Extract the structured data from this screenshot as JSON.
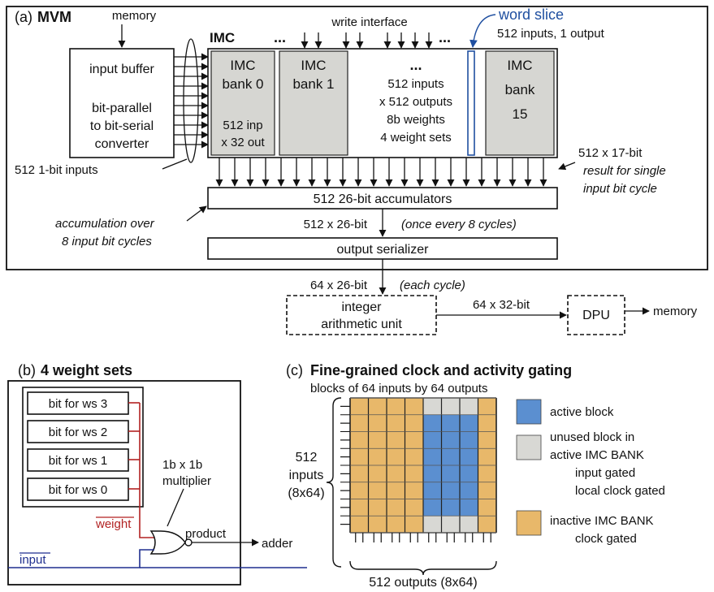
{
  "panel_a": {
    "label": "(a)",
    "title": "MVM",
    "memory_top": "memory",
    "input_buffer": [
      "input buffer",
      "bit-parallel",
      "to bit-serial",
      "converter"
    ],
    "input_bits": "512 1-bit inputs",
    "imc_label": "IMC",
    "write_interface": "write interface",
    "ellipsis": "...",
    "word_slice": "word slice",
    "word_slice_desc": "512 inputs, 1 output",
    "bank0": [
      "IMC",
      "bank 0",
      "512 inp",
      "x 32 out"
    ],
    "bank1": [
      "IMC",
      "bank 1"
    ],
    "bank_middle": [
      "...",
      "512 inputs",
      "x 512 outputs",
      "8b weights",
      "4 weight sets"
    ],
    "bank15": [
      "IMC",
      "bank",
      "15"
    ],
    "result_width": "512 x 17-bit",
    "result_desc": [
      "result for single",
      "input bit cycle"
    ],
    "accumulators": "512 26-bit accumulators",
    "accumulation_note": [
      "accumulation over",
      "8 input bit cycles"
    ],
    "acc_width": "512 x 26-bit",
    "acc_rate": "(once every 8 cycles)",
    "serializer": "output serializer",
    "ser_width": "64 x 26-bit",
    "ser_rate": "(each cycle)",
    "iau": [
      "integer",
      "arithmetic unit"
    ],
    "iau_width": "64 x 32-bit",
    "dpu": "DPU",
    "memory_out": "memory"
  },
  "panel_b": {
    "label": "(b)",
    "title": "4 weight sets",
    "bits": [
      "bit for ws 3",
      "bit for ws 2",
      "bit for ws 1",
      "bit for ws 0"
    ],
    "multiplier": [
      "1b x 1b",
      "multiplier"
    ],
    "weight": "weight",
    "input": "input",
    "product": "product",
    "adder": "adder",
    "colors": {
      "weight": "#b22222",
      "input": "#1f2f8f"
    }
  },
  "panel_c": {
    "label": "(c)",
    "title": "Fine-grained clock and activity gating",
    "subtitle": "blocks of 64 inputs by 64 outputs",
    "inputs_label": [
      "512",
      "inputs",
      "(8x64)"
    ],
    "outputs_label": "512 outputs (8x64)",
    "legend": [
      {
        "name": "active-block",
        "lines": [
          "active block"
        ],
        "color": "#5b8fd0"
      },
      {
        "name": "unused-block",
        "lines": [
          "unused block in",
          "active IMC BANK",
          "input gated",
          "local clock gated"
        ],
        "color": "#d8d8d4"
      },
      {
        "name": "inactive-bank",
        "lines": [
          "inactive IMC BANK",
          "clock gated"
        ],
        "color": "#e8b86a"
      }
    ],
    "grid": {
      "cols": 8,
      "rows": 8,
      "cells": [
        [
          "inactive",
          "inactive",
          "inactive",
          "inactive",
          "unused",
          "unused",
          "unused",
          "inactive"
        ],
        [
          "inactive",
          "inactive",
          "inactive",
          "inactive",
          "active",
          "active",
          "active",
          "inactive"
        ],
        [
          "inactive",
          "inactive",
          "inactive",
          "inactive",
          "active",
          "active",
          "active",
          "inactive"
        ],
        [
          "inactive",
          "inactive",
          "inactive",
          "inactive",
          "active",
          "active",
          "active",
          "inactive"
        ],
        [
          "inactive",
          "inactive",
          "inactive",
          "inactive",
          "active",
          "active",
          "active",
          "inactive"
        ],
        [
          "inactive",
          "inactive",
          "inactive",
          "inactive",
          "active",
          "active",
          "active",
          "inactive"
        ],
        [
          "inactive",
          "inactive",
          "inactive",
          "inactive",
          "active",
          "active",
          "active",
          "inactive"
        ],
        [
          "inactive",
          "inactive",
          "inactive",
          "inactive",
          "unused",
          "unused",
          "unused",
          "inactive"
        ]
      ]
    }
  }
}
